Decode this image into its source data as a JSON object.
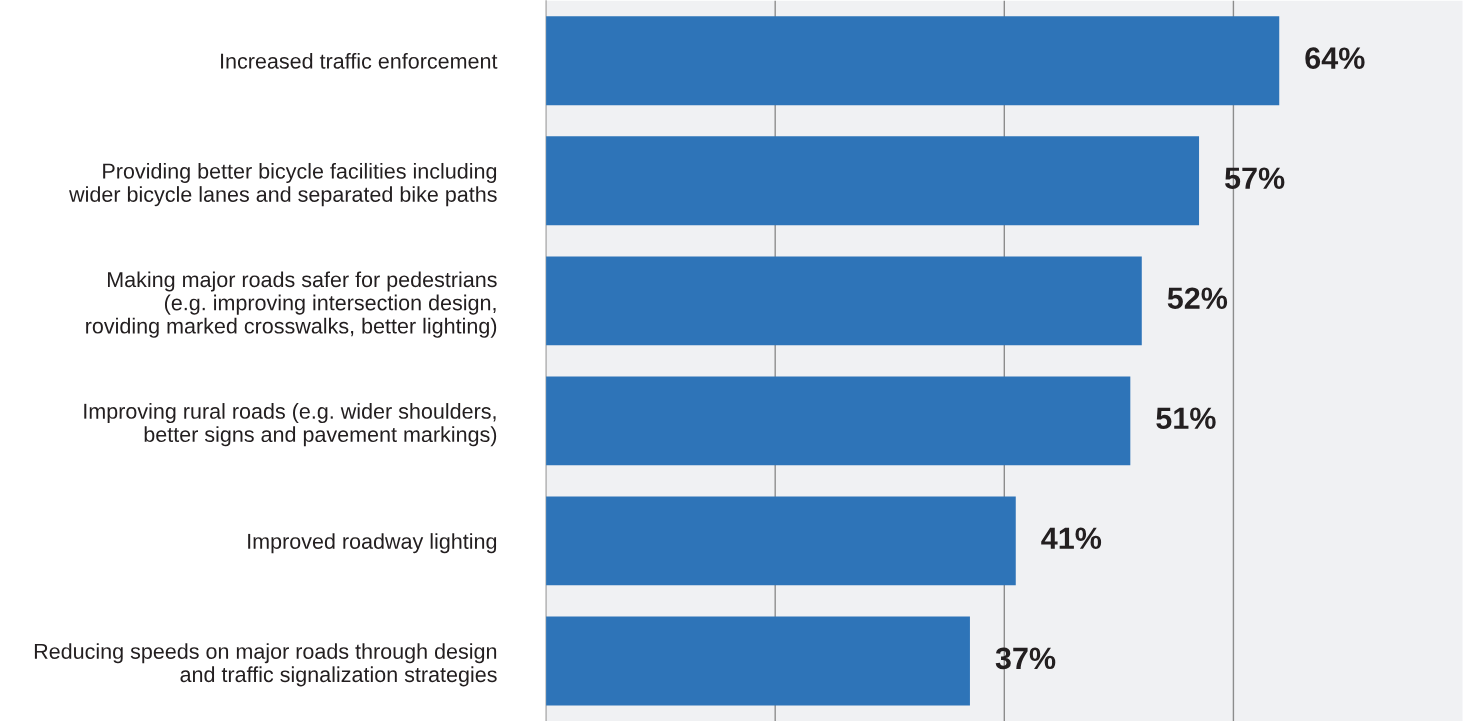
{
  "chart_data": {
    "type": "bar",
    "orientation": "horizontal",
    "categories": [
      "Increased traffic enforcement",
      "Providing better bicycle facilities including\nwider bicycle lanes and separated bike paths",
      "Making major roads safer for pedestrians\n(e.g. improving intersection design,\nroviding marked crosswalks, better lighting)",
      "Improving rural roads (e.g. wider shoulders,\nbetter signs and pavement markings)",
      "Improved roadway lighting",
      "Reducing speeds on major roads through design\nand traffic signalization strategies"
    ],
    "values": [
      64,
      57,
      52,
      51,
      41,
      37
    ],
    "value_labels": [
      "64%",
      "57%",
      "52%",
      "51%",
      "41%",
      "37%"
    ],
    "color": "#2e74b8",
    "xlim": [
      0,
      80
    ],
    "xticks": [
      {
        "value": 20,
        "label": null
      },
      {
        "value": 40,
        "label": null
      },
      {
        "value": 60,
        "label": null
      }
    ],
    "grid": "x",
    "tick_labels": "y"
  }
}
